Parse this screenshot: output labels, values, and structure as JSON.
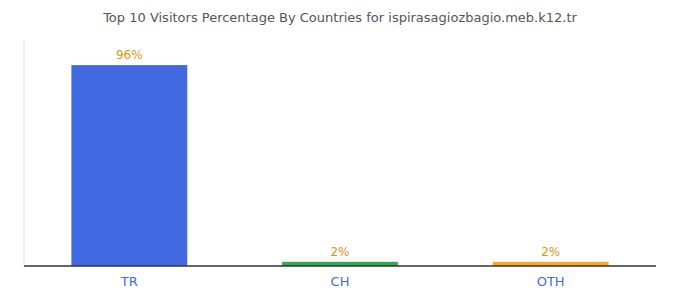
{
  "chart_data": {
    "type": "bar",
    "title": "Top 10 Visitors Percentage By Countries for ispirasagiozbagio.meb.k12.tr",
    "categories": [
      "TR",
      "CH",
      "OTH"
    ],
    "values": [
      96,
      2,
      2
    ],
    "value_labels": [
      "96%",
      "2%",
      "2%"
    ],
    "colors": [
      "#4169e1",
      "#33a853",
      "#f9a825"
    ],
    "ylim": [
      0,
      108
    ],
    "grid": false,
    "data_labels": true,
    "tick_labels": "x"
  }
}
